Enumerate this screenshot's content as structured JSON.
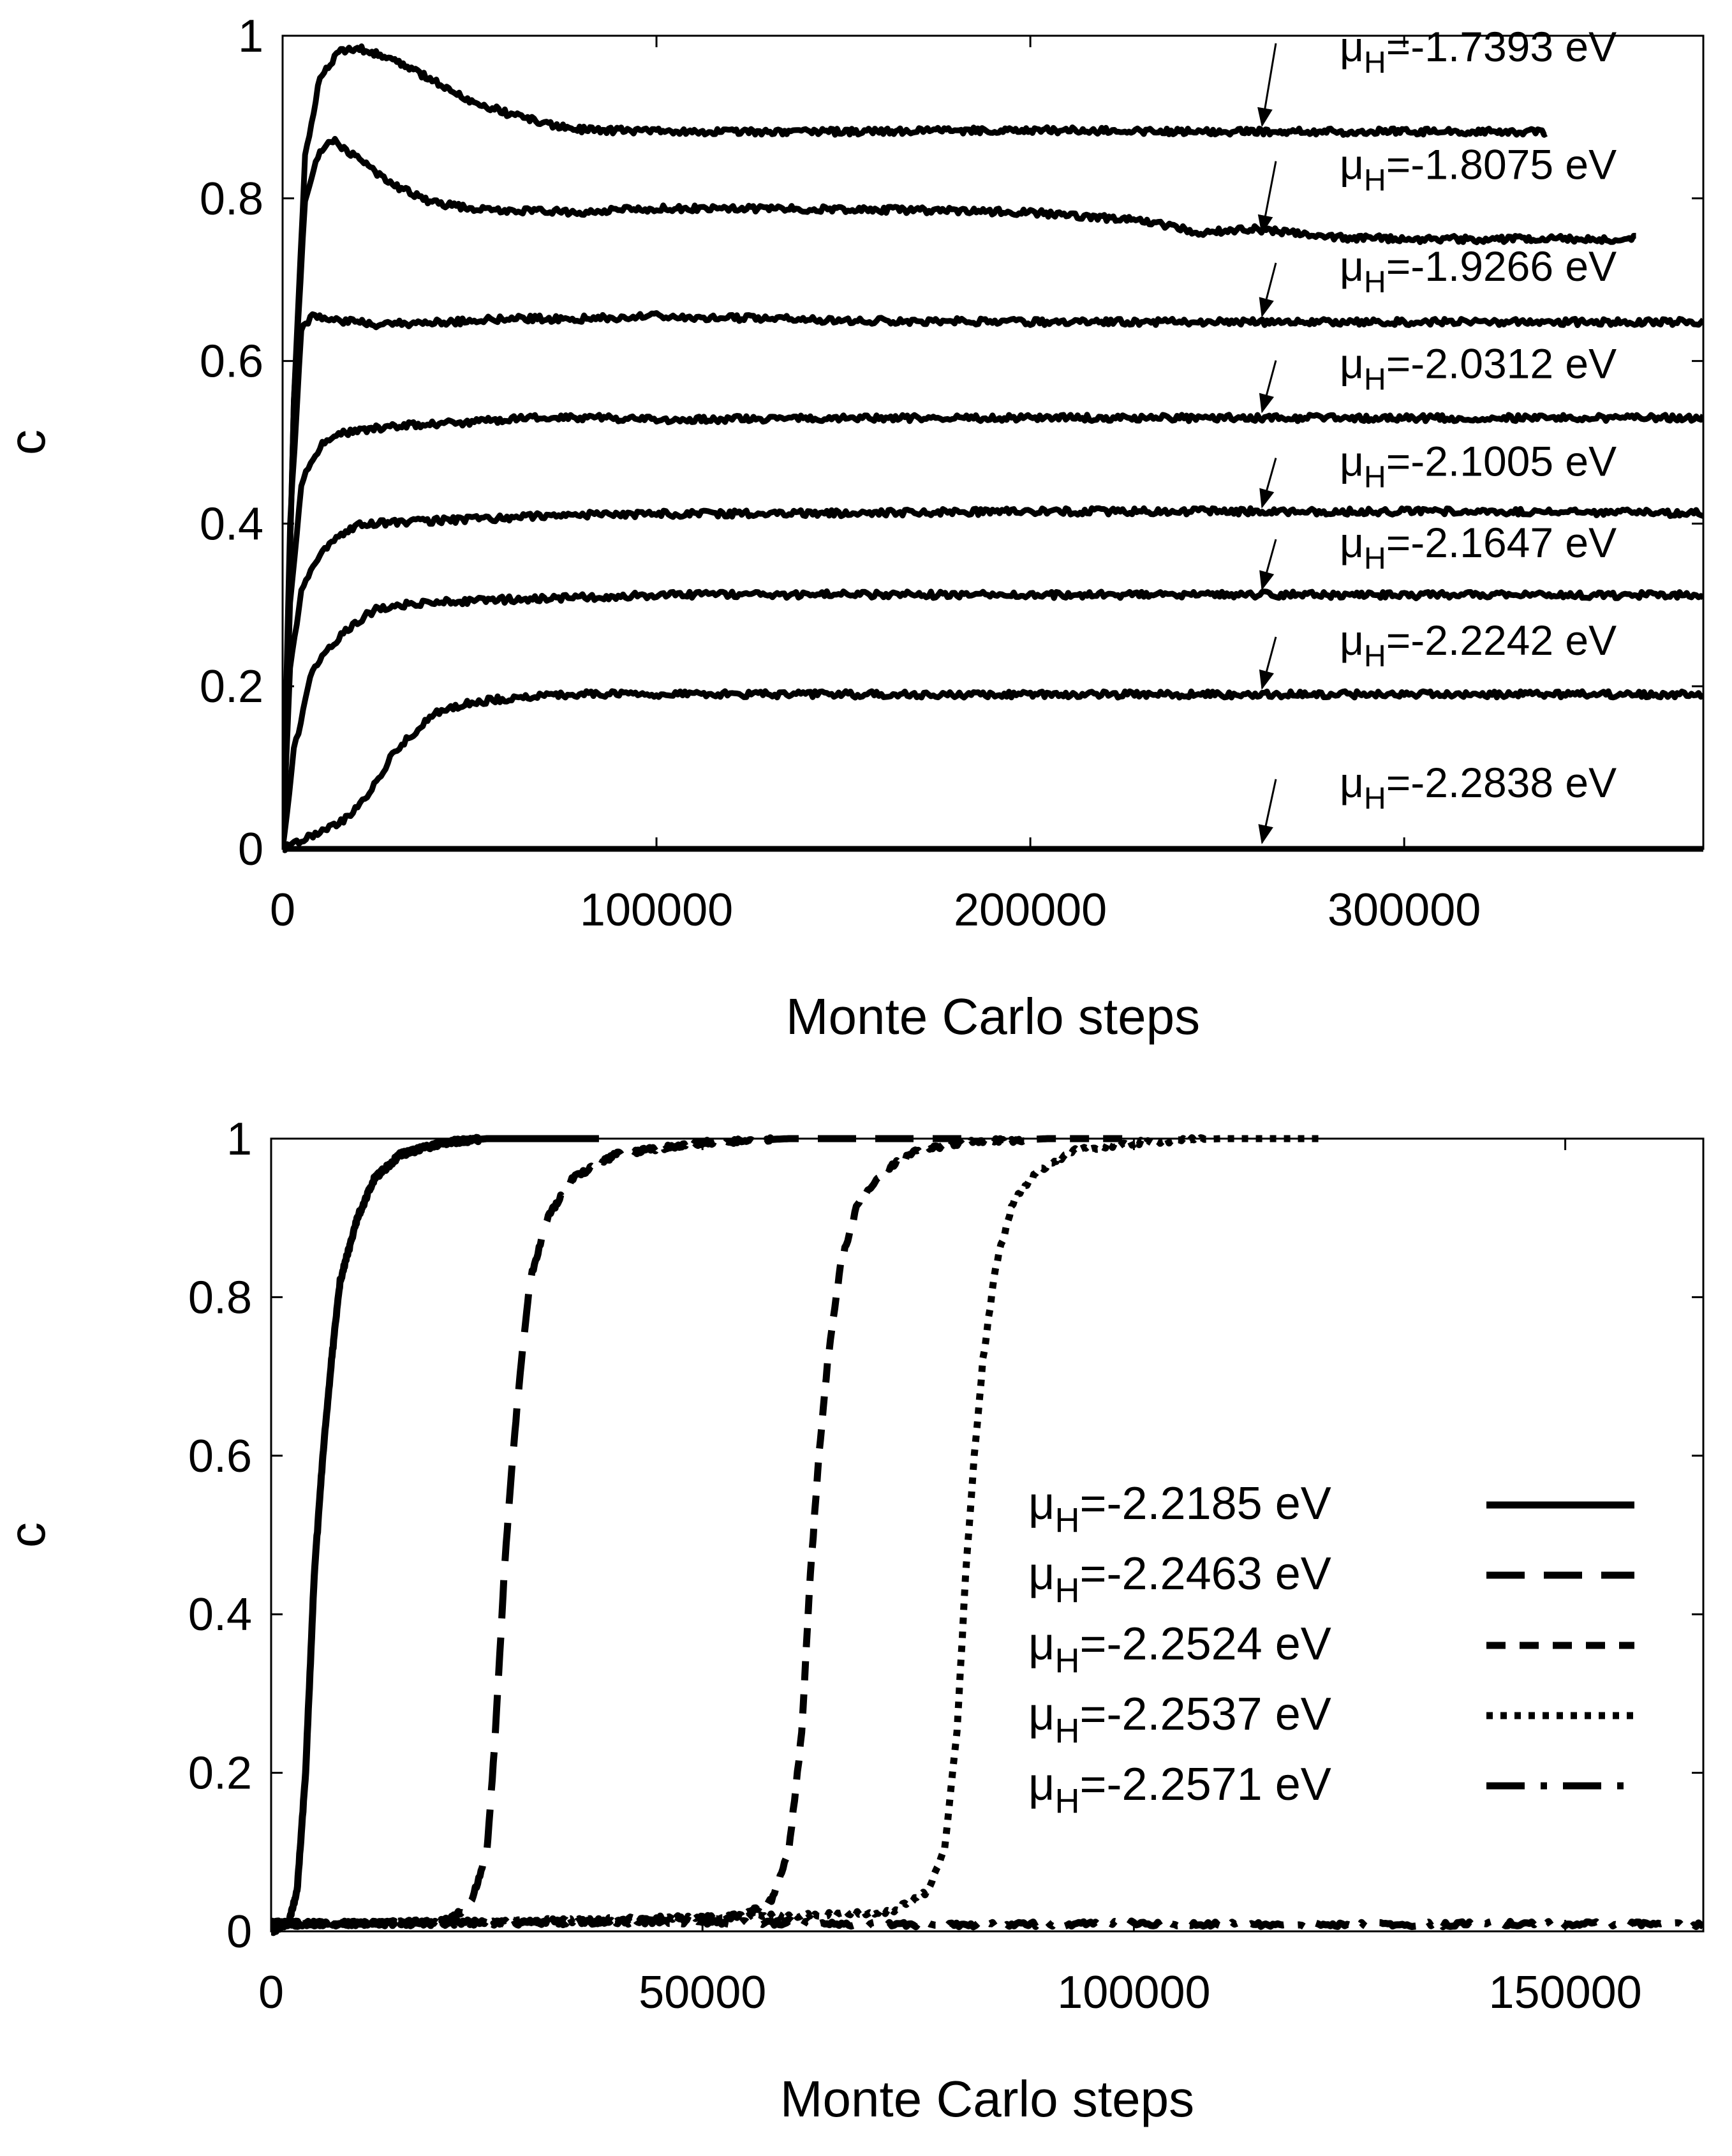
{
  "chart_data": [
    {
      "type": "line",
      "panel": "top",
      "title": "",
      "xlabel": "Monte Carlo steps",
      "ylabel": "c",
      "xlim": [
        0,
        380000
      ],
      "ylim": [
        0,
        1
      ],
      "xticks": [
        0,
        100000,
        200000,
        300000
      ],
      "xtick_labels": [
        "0",
        "100000",
        "200000",
        "300000"
      ],
      "yticks": [
        0,
        0.2,
        0.4,
        0.6,
        0.8,
        1
      ],
      "ytick_labels": [
        "0",
        "0.2",
        "0.4",
        "0.6",
        "0.8",
        "1"
      ],
      "grid": false,
      "legend_position": "inline annotations with arrows (right side)",
      "series": [
        {
          "name": "μH=-1.7393 eV",
          "label_prefix": "μ",
          "label_sub": "H",
          "label_value": "=-1.7393 eV",
          "x": [
            0,
            3000,
            6000,
            10000,
            15000,
            20000,
            30000,
            40000,
            50000,
            60000,
            70000,
            80000,
            100000,
            150000,
            200000,
            250000,
            300000,
            338000
          ],
          "values": [
            0,
            0.55,
            0.85,
            0.95,
            0.98,
            0.985,
            0.97,
            0.945,
            0.92,
            0.905,
            0.892,
            0.885,
            0.882,
            0.882,
            0.884,
            0.882,
            0.882,
            0.882
          ]
        },
        {
          "name": "μH=-1.8075 eV",
          "label_prefix": "μ",
          "label_sub": "H",
          "label_value": "=-1.8075 eV",
          "x": [
            0,
            3000,
            6000,
            10000,
            14000,
            20000,
            30000,
            40000,
            50000,
            60000,
            80000,
            100000,
            150000,
            200000,
            230000,
            245000,
            260000,
            280000,
            300000,
            340000,
            362000
          ],
          "values": [
            0,
            0.55,
            0.8,
            0.86,
            0.87,
            0.85,
            0.815,
            0.795,
            0.788,
            0.785,
            0.783,
            0.788,
            0.787,
            0.783,
            0.772,
            0.758,
            0.762,
            0.752,
            0.75,
            0.75,
            0.75
          ]
        },
        {
          "name": "μH=-1.9266 eV",
          "label_prefix": "μ",
          "label_sub": "H",
          "label_value": "=-1.9266 eV",
          "x": [
            0,
            2000,
            5000,
            8000,
            15000,
            25000,
            40000,
            60000,
            80000,
            100000,
            150000,
            200000,
            250000,
            300000,
            380000
          ],
          "values": [
            0,
            0.4,
            0.64,
            0.655,
            0.65,
            0.645,
            0.647,
            0.652,
            0.652,
            0.655,
            0.65,
            0.648,
            0.648,
            0.648,
            0.648
          ]
        },
        {
          "name": "μH=-2.0312 eV",
          "label_prefix": "μ",
          "label_sub": "H",
          "label_value": "=-2.0312 eV",
          "x": [
            0,
            2000,
            5000,
            10000,
            15000,
            20000,
            30000,
            50000,
            70000,
            100000,
            150000,
            200000,
            250000,
            300000,
            380000
          ],
          "values": [
            0,
            0.3,
            0.45,
            0.495,
            0.51,
            0.515,
            0.52,
            0.525,
            0.532,
            0.528,
            0.53,
            0.53,
            0.53,
            0.53,
            0.53
          ]
        },
        {
          "name": "μH=-2.1005 eV",
          "label_prefix": "μ",
          "label_sub": "H",
          "label_value": "=-2.1005 eV",
          "x": [
            0,
            2000,
            5000,
            10000,
            15000,
            20000,
            30000,
            50000,
            70000,
            100000,
            150000,
            200000,
            250000,
            300000,
            380000
          ],
          "values": [
            0,
            0.22,
            0.32,
            0.36,
            0.385,
            0.398,
            0.402,
            0.405,
            0.41,
            0.412,
            0.413,
            0.415,
            0.415,
            0.415,
            0.413
          ]
        },
        {
          "name": "μH=-2.1647 eV",
          "label_prefix": "μ",
          "label_sub": "H",
          "label_value": "=-2.1647 eV",
          "x": [
            0,
            3000,
            8000,
            15000,
            20000,
            25000,
            35000,
            50000,
            70000,
            100000,
            150000,
            200000,
            250000,
            300000,
            380000
          ],
          "values": [
            0,
            0.12,
            0.22,
            0.26,
            0.28,
            0.295,
            0.302,
            0.305,
            0.308,
            0.312,
            0.313,
            0.312,
            0.313,
            0.312,
            0.312
          ]
        },
        {
          "name": "μH=-2.2242 eV",
          "label_prefix": "μ",
          "label_sub": "H",
          "label_value": "=-2.2242 eV",
          "x": [
            0,
            5000,
            15000,
            22000,
            30000,
            40000,
            50000,
            60000,
            80000,
            100000,
            150000,
            200000,
            250000,
            300000,
            380000
          ],
          "values": [
            0,
            0.01,
            0.03,
            0.06,
            0.12,
            0.165,
            0.18,
            0.185,
            0.19,
            0.19,
            0.19,
            0.19,
            0.19,
            0.19,
            0.19
          ]
        },
        {
          "name": "μH=-2.2838 eV",
          "label_prefix": "μ",
          "label_sub": "H",
          "label_value": "=-2.2838 eV",
          "x": [
            0,
            100000,
            200000,
            300000,
            380000
          ],
          "values": [
            0,
            0,
            0,
            0,
            0
          ]
        }
      ],
      "annotation_label_y": [
        0.975,
        0.83,
        0.705,
        0.585,
        0.465,
        0.365,
        0.245,
        0.07
      ],
      "annotation_arrow_target_x": 262000
    },
    {
      "type": "line",
      "panel": "bottom",
      "title": "",
      "xlabel": "Monte Carlo steps",
      "ylabel": "c",
      "xlim": [
        0,
        166000
      ],
      "ylim": [
        0,
        1
      ],
      "xticks": [
        0,
        50000,
        100000,
        150000
      ],
      "xtick_labels": [
        "0",
        "50000",
        "100000",
        "150000"
      ],
      "yticks": [
        0,
        0.2,
        0.4,
        0.6,
        0.8,
        1
      ],
      "ytick_labels": [
        "0",
        "0.2",
        "0.4",
        "0.6",
        "0.8",
        "1"
      ],
      "grid": false,
      "legend_position": "right, middle-lower inside plot",
      "series": [
        {
          "name": "μH=-2.2185 eV",
          "label_prefix": "μ",
          "label_sub": "H",
          "label_value": "=-2.2185 eV",
          "dash": "solid",
          "x": [
            0,
            2000,
            3000,
            4000,
            5000,
            6000,
            7000,
            8000,
            10000,
            12000,
            15000,
            20000,
            25000,
            30000,
            38000
          ],
          "values": [
            0,
            0.01,
            0.05,
            0.2,
            0.45,
            0.6,
            0.72,
            0.82,
            0.9,
            0.95,
            0.98,
            0.995,
            1.0,
            1.0,
            1.0
          ]
        },
        {
          "name": "μH=-2.2463 eV",
          "label_prefix": "μ",
          "label_sub": "H",
          "label_value": "=-2.2463 eV",
          "dash": "long-dash",
          "x": [
            0,
            10000,
            20000,
            23000,
            25000,
            26000,
            27000,
            28000,
            29000,
            30000,
            32000,
            35000,
            40000,
            50000,
            60000,
            70000,
            80000
          ],
          "values": [
            0.01,
            0.01,
            0.012,
            0.03,
            0.1,
            0.25,
            0.45,
            0.6,
            0.72,
            0.82,
            0.9,
            0.95,
            0.98,
            0.995,
            1.0,
            1.0,
            1.0
          ]
        },
        {
          "name": "μH=-2.2524 eV",
          "label_prefix": "μ",
          "label_sub": "H",
          "label_value": "=-2.2524 eV",
          "dash": "medium-dash",
          "x": [
            0,
            20000,
            40000,
            55000,
            58000,
            60000,
            61500,
            62500,
            63500,
            64500,
            66000,
            68000,
            71000,
            75000,
            80000,
            90000,
            100000
          ],
          "values": [
            0.01,
            0.01,
            0.012,
            0.02,
            0.04,
            0.1,
            0.25,
            0.45,
            0.6,
            0.72,
            0.84,
            0.92,
            0.96,
            0.985,
            0.995,
            1.0,
            1.0
          ]
        },
        {
          "name": "μH=-2.2537 eV",
          "label_prefix": "μ",
          "label_sub": "H",
          "label_value": "=-2.2537 eV",
          "dash": "dotted",
          "x": [
            0,
            20000,
            40000,
            60000,
            72000,
            76000,
            78000,
            79500,
            80500,
            81500,
            82500,
            84000,
            86000,
            89000,
            93000,
            100000,
            110000,
            122000
          ],
          "values": [
            0.01,
            0.01,
            0.015,
            0.02,
            0.025,
            0.05,
            0.1,
            0.25,
            0.45,
            0.6,
            0.72,
            0.84,
            0.92,
            0.96,
            0.985,
            0.995,
            1.0,
            1.0
          ]
        },
        {
          "name": "μH=-2.2571 eV",
          "label_prefix": "μ",
          "label_sub": "H",
          "label_value": "=-2.2571 eV",
          "dash": "dash-dot",
          "x": [
            0,
            20000,
            50000,
            75000,
            100000,
            125000,
            150000,
            166000
          ],
          "values": [
            0.008,
            0.012,
            0.012,
            0.008,
            0.01,
            0.008,
            0.01,
            0.008
          ]
        }
      ]
    }
  ],
  "panels": {
    "top": {
      "xlabel": "Monte Carlo steps",
      "ylabel": "c"
    },
    "bottom": {
      "xlabel": "Monte Carlo steps",
      "ylabel": "c"
    }
  }
}
